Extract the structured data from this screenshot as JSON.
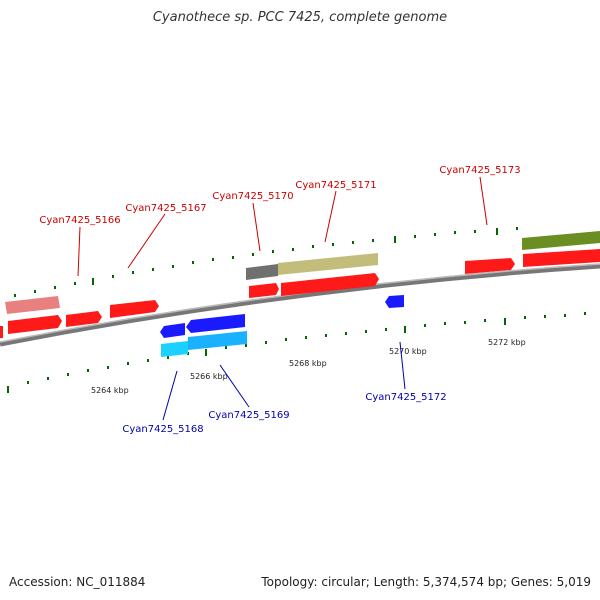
{
  "title": "Cyanothece sp. PCC 7425, complete genome",
  "footer": {
    "accession": "Accession: NC_011884",
    "summary": "Topology: circular; Length: 5,374,574 bp; Genes: 5,019"
  },
  "scale_labels": [
    "5264 kbp",
    "5266 kbp",
    "5268 kbp",
    "5270 kbp",
    "5272 kbp"
  ],
  "colors": {
    "forward_label": "#cc0000",
    "reverse_label": "#0000aa",
    "tick": "#006600",
    "backbone": "#888888"
  },
  "forward_genes": [
    {
      "name": "Cyan7425_5166",
      "labeled": true,
      "color": "#ff1a1a"
    },
    {
      "name": "Cyan7425_5167",
      "labeled": true,
      "color": "#ff1a1a"
    },
    {
      "name": "Cyan7425_5170",
      "labeled": true,
      "color": "#ff1a1a"
    },
    {
      "name": "Cyan7425_5171",
      "labeled": true,
      "color": "#ff1a1a"
    },
    {
      "name": "Cyan7425_5173",
      "labeled": true,
      "color": "#ff1a1a"
    }
  ],
  "reverse_genes": [
    {
      "name": "Cyan7425_5168",
      "labeled": true,
      "color": "#1a1aff"
    },
    {
      "name": "Cyan7425_5169",
      "labeled": true,
      "color": "#1a1aff"
    },
    {
      "name": "Cyan7425_5172",
      "labeled": true,
      "color": "#1a1aff"
    }
  ]
}
